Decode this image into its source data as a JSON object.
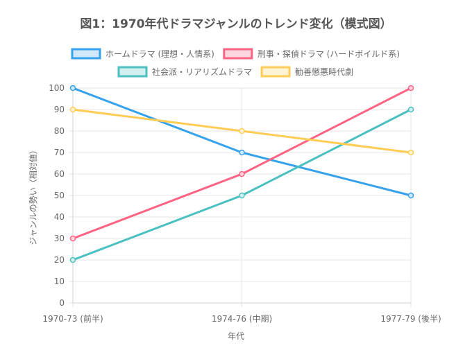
{
  "chart_data": {
    "type": "line",
    "title": "図1：1970年代ドラマジャンルのトレンド変化（模式図）",
    "xlabel": "年代",
    "ylabel": "ジャンルの勢い（相対値）",
    "categories": [
      "1970-73 (前半)",
      "1974-76 (中期)",
      "1977-79 (後半)"
    ],
    "ylim": [
      0,
      100
    ],
    "yticks": [
      0,
      10,
      20,
      30,
      40,
      50,
      60,
      70,
      80,
      90,
      100
    ],
    "grid": true,
    "legend_position": "top",
    "series": [
      {
        "name": "ホームドラマ (理想・人情系)",
        "values": [
          100,
          70,
          50
        ],
        "color": "#36a2eb",
        "fill": "#cfe8fa"
      },
      {
        "name": "刑事・探偵ドラマ (ハードボイルド系)",
        "values": [
          30,
          60,
          100
        ],
        "color": "#ff6384",
        "fill": "#ffd6df"
      },
      {
        "name": "社会派・リアリズムドラマ",
        "values": [
          20,
          50,
          90
        ],
        "color": "#4bc0c0",
        "fill": "#d2f0f0"
      },
      {
        "name": "勧善懲悪時代劇",
        "values": [
          90,
          80,
          70
        ],
        "color": "#ffcd56",
        "fill": "#fff3d4"
      }
    ]
  }
}
